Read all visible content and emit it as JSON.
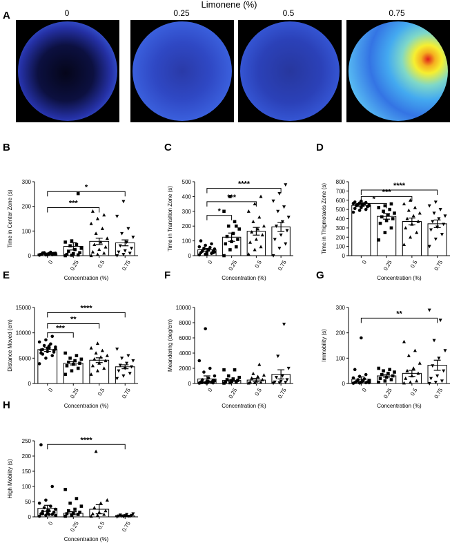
{
  "panel_a": {
    "label": "A",
    "title": "Limonene (%)",
    "columns": [
      "0",
      "0.25",
      "0.5",
      "0.75"
    ],
    "heatmap_colors": [
      "#1b1f6a",
      "#3a5ce0",
      "#3fc0f0",
      "#f7f22a",
      "#e02818"
    ]
  },
  "chart_data": [
    {
      "panel": "B",
      "type": "bar",
      "categories": [
        "0",
        "0.25",
        "0.5",
        "0.75"
      ],
      "values": [
        7,
        38,
        58,
        52
      ],
      "errors": [
        2,
        15,
        13,
        12
      ],
      "ylabel": "Time in Center Zone (s)",
      "xlabel": "Concentration (%)",
      "ylim": [
        0,
        300
      ],
      "yticks": [
        0,
        100,
        200,
        300
      ],
      "points": [
        [
          2,
          3,
          4,
          5,
          6,
          7,
          8,
          9,
          10,
          12,
          14,
          4,
          6,
          8,
          5,
          3,
          9,
          11,
          7,
          6
        ],
        [
          0,
          2,
          3,
          5,
          8,
          12,
          18,
          25,
          30,
          40,
          45,
          55,
          60,
          252
        ],
        [
          0,
          5,
          10,
          15,
          25,
          35,
          45,
          55,
          70,
          90,
          110,
          130,
          150,
          165,
          180
        ],
        [
          0,
          5,
          10,
          15,
          20,
          30,
          40,
          55,
          75,
          90,
          110,
          160,
          220
        ]
      ],
      "markers": [
        "circle",
        "square",
        "triangle",
        "tri-down"
      ],
      "significance": [
        {
          "from": 0,
          "to": 3,
          "label": "*",
          "y": 260
        },
        {
          "from": 0,
          "to": 2,
          "label": "***",
          "y": 195
        }
      ]
    },
    {
      "panel": "C",
      "type": "bar",
      "categories": [
        "0",
        "0.25",
        "0.5",
        "0.75"
      ],
      "values": [
        40,
        125,
        165,
        195
      ],
      "errors": [
        9,
        28,
        26,
        31
      ],
      "ylabel": "Time in Transition Zone (s)",
      "xlabel": "Concentration (%)",
      "ylim": [
        0,
        500
      ],
      "yticks": [
        0,
        100,
        200,
        300,
        400,
        500
      ],
      "points": [
        [
          5,
          10,
          15,
          20,
          25,
          30,
          35,
          40,
          45,
          50,
          55,
          60,
          70,
          80,
          100,
          10,
          20,
          30,
          40,
          25
        ],
        [
          0,
          40,
          60,
          80,
          95,
          110,
          130,
          150,
          180,
          200,
          230,
          300,
          400,
          200
        ],
        [
          10,
          40,
          60,
          90,
          110,
          140,
          160,
          180,
          200,
          230,
          260,
          300,
          350,
          400
        ],
        [
          0,
          50,
          80,
          110,
          140,
          170,
          200,
          230,
          260,
          300,
          330,
          370,
          420,
          480
        ]
      ],
      "markers": [
        "circle",
        "square",
        "triangle",
        "tri-down"
      ],
      "significance": [
        {
          "from": 0,
          "to": 3,
          "label": "****",
          "y": 455
        },
        {
          "from": 0,
          "to": 2,
          "label": "***",
          "y": 365
        },
        {
          "from": 0,
          "to": 1,
          "label": "*",
          "y": 272
        }
      ]
    },
    {
      "panel": "D",
      "type": "bar",
      "categories": [
        "0",
        "0.25",
        "0.5",
        "0.75"
      ],
      "values": [
        545,
        425,
        370,
        345
      ],
      "errors": [
        12,
        30,
        37,
        41
      ],
      "ylabel": "Time in Thigmotaxis Zone (s)",
      "xlabel": "Concentration (%)",
      "ylim": [
        0,
        800
      ],
      "yticks": [
        0,
        100,
        200,
        300,
        400,
        500,
        600,
        700,
        800
      ],
      "points": [
        [
          470,
          490,
          500,
          510,
          520,
          530,
          540,
          545,
          550,
          555,
          560,
          565,
          570,
          575,
          580,
          590,
          530,
          550,
          560,
          540
        ],
        [
          170,
          250,
          300,
          350,
          380,
          400,
          420,
          440,
          460,
          480,
          500,
          520,
          540,
          560
        ],
        [
          120,
          200,
          250,
          300,
          340,
          370,
          400,
          430,
          460,
          490,
          520,
          560,
          600
        ],
        [
          100,
          180,
          230,
          280,
          310,
          340,
          370,
          400,
          430,
          460,
          500,
          540,
          580
        ]
      ],
      "markers": [
        "circle",
        "square",
        "triangle",
        "tri-down"
      ],
      "significance": [
        {
          "from": 0,
          "to": 3,
          "label": "****",
          "y": 710
        },
        {
          "from": 0,
          "to": 2,
          "label": "***",
          "y": 640
        },
        {
          "from": 0,
          "to": 1,
          "label": "*",
          "y": 565
        }
      ]
    },
    {
      "panel": "E",
      "type": "bar",
      "categories": [
        "0",
        "0.25",
        "0.5",
        "0.75"
      ],
      "values": [
        6700,
        4000,
        4600,
        3300
      ],
      "errors": [
        380,
        330,
        470,
        390
      ],
      "ylabel": "Distance Moved (cm)",
      "xlabel": "Concentration (%)",
      "ylim": [
        0,
        15000
      ],
      "yticks": [
        0,
        5000,
        10000,
        15000
      ],
      "points": [
        [
          3900,
          5000,
          5500,
          6000,
          6300,
          6500,
          6700,
          6900,
          7200,
          7500,
          7800,
          8200,
          8600,
          9300,
          6600,
          7000,
          6200,
          5800,
          7400,
          6800
        ],
        [
          1800,
          2500,
          3000,
          3500,
          3800,
          4000,
          4200,
          4500,
          4800,
          5000,
          5500,
          6000
        ],
        [
          1800,
          2500,
          3000,
          3500,
          4000,
          4500,
          4800,
          5200,
          5500,
          6000,
          6500,
          7000,
          7900
        ],
        [
          1000,
          1500,
          2000,
          2500,
          3000,
          3300,
          3600,
          4000,
          4500,
          5000,
          5500,
          6800
        ]
      ],
      "markers": [
        "circle",
        "square",
        "triangle",
        "tri-down"
      ],
      "significance": [
        {
          "from": 0,
          "to": 3,
          "label": "****",
          "y": 14000
        },
        {
          "from": 0,
          "to": 2,
          "label": "**",
          "y": 11800
        },
        {
          "from": 0,
          "to": 1,
          "label": "***",
          "y": 10000
        }
      ]
    },
    {
      "panel": "F",
      "type": "bar",
      "categories": [
        "0",
        "0.25",
        "0.5",
        "0.75"
      ],
      "values": [
        600,
        400,
        450,
        1200
      ],
      "errors": [
        400,
        140,
        230,
        600
      ],
      "ylabel": "Meandering (deg/cm)",
      "xlabel": "Concentration (%)",
      "ylim": [
        0,
        10000
      ],
      "yticks": [
        0,
        2000,
        4000,
        6000,
        8000,
        10000
      ],
      "points": [
        [
          50,
          100,
          150,
          200,
          300,
          400,
          500,
          700,
          1000,
          1500,
          2000,
          3000,
          7200,
          200,
          100,
          60,
          80,
          120,
          250,
          350
        ],
        [
          50,
          100,
          150,
          200,
          300,
          400,
          500,
          600,
          800,
          1000,
          1800,
          1800
        ],
        [
          50,
          100,
          150,
          200,
          300,
          500,
          700,
          900,
          1100,
          1300,
          2500
        ],
        [
          50,
          100,
          150,
          200,
          300,
          500,
          800,
          1000,
          2000,
          3600,
          7800
        ]
      ],
      "markers": [
        "circle",
        "square",
        "triangle",
        "tri-down"
      ],
      "significance": []
    },
    {
      "panel": "G",
      "type": "bar",
      "categories": [
        "0",
        "0.25",
        "0.5",
        "0.75"
      ],
      "values": [
        17,
        30,
        40,
        72
      ],
      "errors": [
        9,
        5,
        12,
        20
      ],
      "ylabel": "Immobility (s)",
      "xlabel": "Concentration (%)",
      "ylim": [
        0,
        300
      ],
      "yticks": [
        0,
        100,
        200,
        300
      ],
      "points": [
        [
          1,
          2,
          3,
          4,
          5,
          6,
          8,
          10,
          12,
          15,
          18,
          22,
          28,
          35,
          55,
          180,
          5,
          7,
          9,
          3
        ],
        [
          5,
          10,
          15,
          20,
          25,
          30,
          35,
          40,
          45,
          50,
          55,
          60
        ],
        [
          2,
          5,
          10,
          20,
          30,
          40,
          50,
          60,
          80,
          110,
          130,
          165
        ],
        [
          0,
          5,
          10,
          20,
          30,
          50,
          70,
          100,
          130,
          170,
          250,
          290
        ]
      ],
      "markers": [
        "circle",
        "square",
        "triangle",
        "tri-down"
      ],
      "significance": [
        {
          "from": 0,
          "to": 3,
          "label": "**",
          "y": 258
        }
      ]
    },
    {
      "panel": "H",
      "type": "bar",
      "categories": [
        "0",
        "0.25",
        "0.5",
        "0.75"
      ],
      "values": [
        28,
        12,
        25,
        3
      ],
      "errors": [
        10,
        5,
        15,
        1
      ],
      "ylabel": "High Mobility (s)",
      "xlabel": "Concentration (%)",
      "ylim": [
        0,
        250
      ],
      "yticks": [
        0,
        50,
        100,
        150,
        200,
        250
      ],
      "points": [
        [
          2,
          5,
          8,
          10,
          12,
          15,
          18,
          20,
          25,
          30,
          35,
          45,
          55,
          100,
          237,
          20,
          15,
          10,
          8,
          5
        ],
        [
          2,
          5,
          8,
          10,
          12,
          15,
          20,
          25,
          35,
          45,
          60,
          90
        ],
        [
          2,
          5,
          8,
          10,
          15,
          20,
          30,
          45,
          55,
          215
        ],
        [
          0,
          1,
          2,
          3,
          4,
          5,
          6,
          8,
          10,
          3,
          2,
          1
        ]
      ],
      "markers": [
        "circle",
        "square",
        "triangle",
        "tri-down"
      ],
      "significance": [
        {
          "from": 0,
          "to": 3,
          "label": "****",
          "y": 238
        }
      ]
    }
  ]
}
